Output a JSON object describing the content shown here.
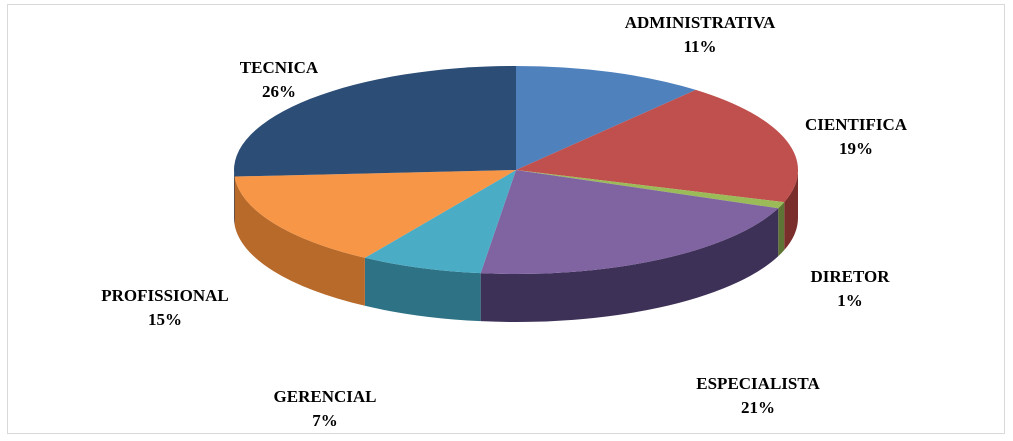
{
  "chart_data": {
    "type": "pie",
    "title": "",
    "slices": [
      {
        "label": "ADMINISTRATIVA",
        "percent": "11%",
        "value": 11,
        "color": "#4F81BD",
        "side": "#2E4D72"
      },
      {
        "label": "CIENTIFICA",
        "percent": "19%",
        "value": 19,
        "color": "#C0504D",
        "side": "#7A2E2C"
      },
      {
        "label": "DIRETOR",
        "percent": "1%",
        "value": 1,
        "color": "#9BBB59",
        "side": "#5E7434"
      },
      {
        "label": "ESPECIALISTA",
        "percent": "21%",
        "value": 21,
        "color": "#8064A2",
        "side": "#3E3158"
      },
      {
        "label": "GERENCIAL",
        "percent": "7%",
        "value": 7,
        "color": "#4BACC6",
        "side": "#2E7285"
      },
      {
        "label": "PROFISSIONAL",
        "percent": "15%",
        "value": 15,
        "color": "#F79646",
        "side": "#B86A2A"
      },
      {
        "label": "TECNICA",
        "percent": "26%",
        "value": 26,
        "color": "#2C4D75",
        "side": "#1B304A"
      }
    ],
    "legend": "none",
    "style": "3d-pie"
  }
}
